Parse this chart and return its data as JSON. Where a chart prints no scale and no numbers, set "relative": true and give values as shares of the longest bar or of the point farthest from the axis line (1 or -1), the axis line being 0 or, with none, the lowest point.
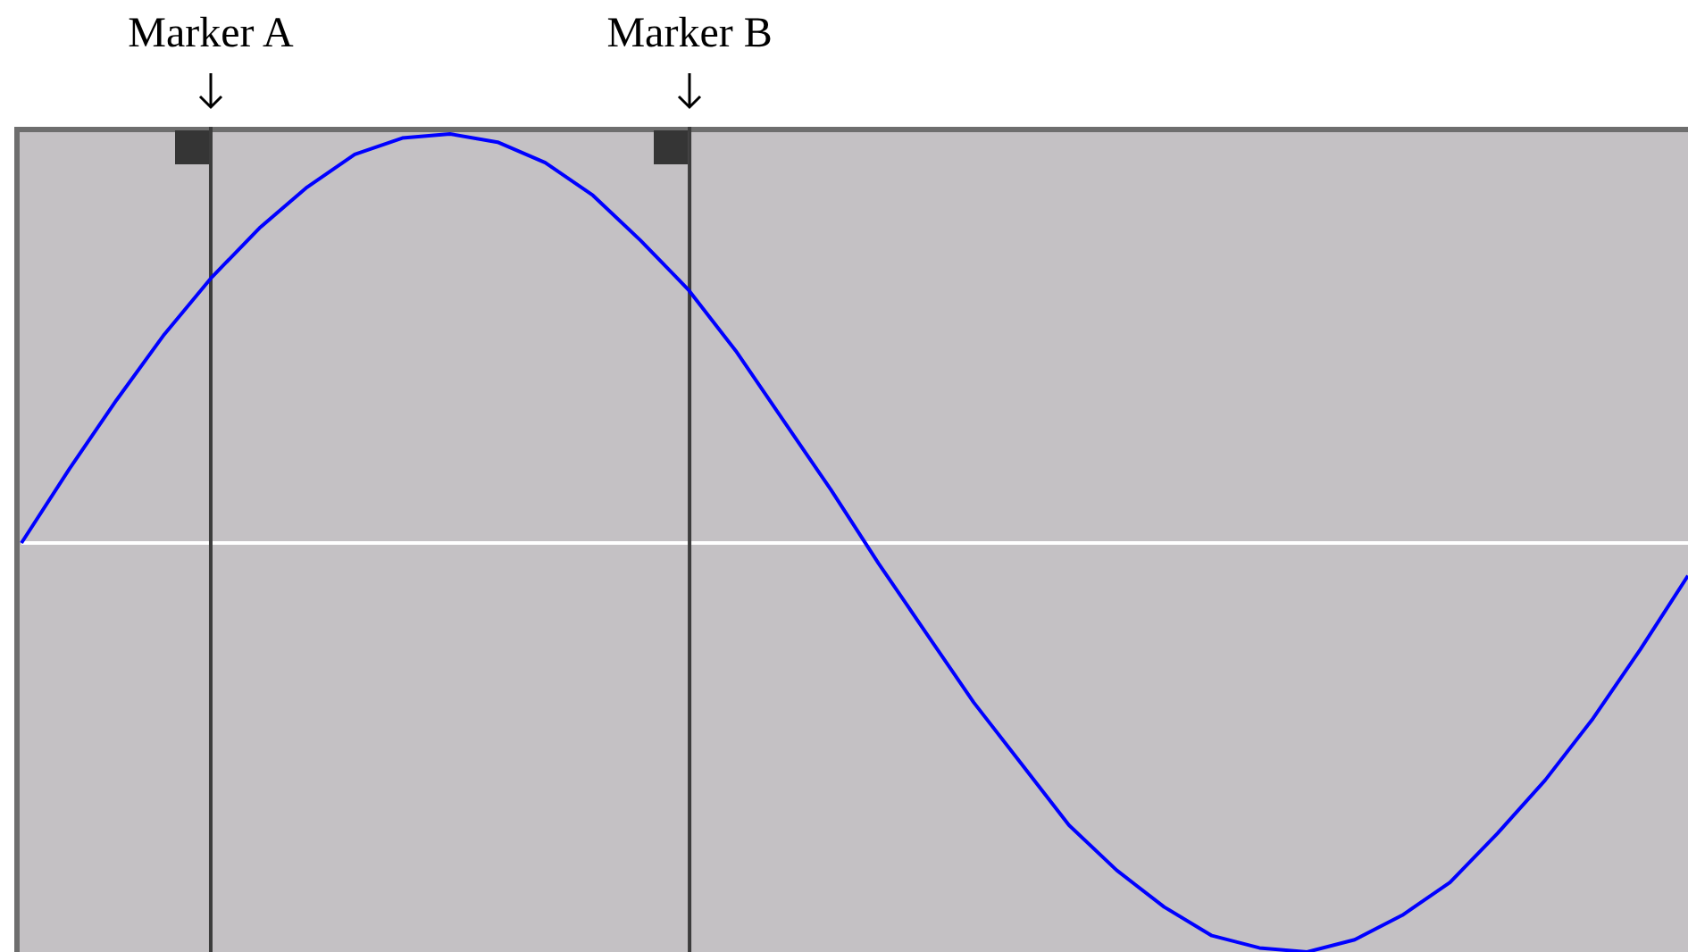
{
  "chart_data": {
    "type": "line",
    "relative": true,
    "tick_labels": false,
    "grid": false,
    "legend": false,
    "marker": "none",
    "line_style": "solid",
    "categories": [
      null,
      null,
      null,
      null,
      null,
      null,
      null,
      null,
      null,
      null,
      null,
      null,
      null,
      null,
      null,
      null,
      null,
      null,
      null,
      null,
      null,
      null,
      null,
      null,
      null,
      null,
      null,
      null,
      null,
      null,
      null,
      null,
      null,
      null,
      null,
      null
    ],
    "series": [
      {
        "color": "#0000ff",
        "values": [
          0,
          0.18,
          0.35,
          0.51,
          0.65,
          0.77,
          0.87,
          0.95,
          0.99,
          1,
          0.98,
          0.93,
          0.85,
          0.74,
          0.62,
          0.47,
          0.3,
          0.13,
          -0.05,
          -0.22,
          -0.39,
          -0.54,
          -0.69,
          -0.8,
          -0.89,
          -0.96,
          -0.99,
          -1,
          -0.97,
          -0.91,
          -0.83,
          -0.71,
          -0.58,
          -0.43,
          -0.26,
          -0.08
        ]
      }
    ],
    "annotations": [
      "Marker A",
      "Marker B"
    ]
  }
}
